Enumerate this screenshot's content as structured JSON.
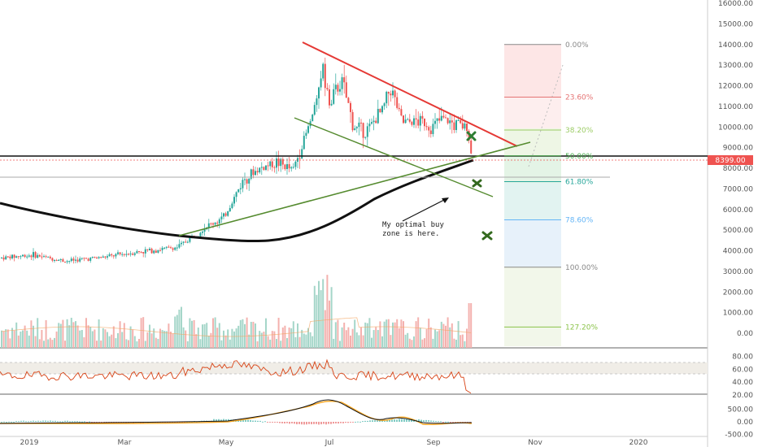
{
  "chart_data": {
    "type": "candlestick",
    "price_axis": {
      "ticks": [
        "16000.00",
        "15000.00",
        "14000.00",
        "13000.00",
        "12000.00",
        "11000.00",
        "10000.00",
        "9000.00",
        "8000.00",
        "7000.00",
        "6000.00",
        "5000.00",
        "4000.00",
        "3000.00",
        "2000.00",
        "1000.00",
        "0.00"
      ],
      "current_price_label": "8399.00",
      "current_price_color": "#ef5350"
    },
    "rsi_axis": {
      "ticks": [
        "80.00",
        "60.00",
        "40.00",
        "20.00"
      ]
    },
    "macd_axis": {
      "ticks": [
        "500.00",
        "0.00",
        "-500.00"
      ]
    },
    "x_axis": {
      "labels": [
        "2019",
        "Mar",
        "May",
        "Jul",
        "Sep",
        "Nov",
        "2020"
      ]
    },
    "fib_levels": [
      {
        "label": "0.00%",
        "price": 14000,
        "color": "#888888"
      },
      {
        "label": "23.60%",
        "price": 11450,
        "color": "#e57373"
      },
      {
        "label": "38.20%",
        "price": 9850,
        "color": "#9ccc65"
      },
      {
        "label": "50.00%",
        "price": 8600,
        "color": "#4caf50"
      },
      {
        "label": "61.80%",
        "price": 7350,
        "color": "#26a69a"
      },
      {
        "label": "78.60%",
        "price": 5500,
        "color": "#64b5f6"
      },
      {
        "label": "100.00%",
        "price": 3200,
        "color": "#888888"
      },
      {
        "label": "127.20%",
        "price": 300,
        "color": "#8bc34a"
      }
    ],
    "annotation": {
      "line1": "My optimal buy",
      "line2": "zone is here."
    },
    "colors": {
      "up": "#26a69a",
      "down": "#ef5350",
      "trend_red": "#e53935",
      "trend_green": "#558b2f",
      "ma": "#111111",
      "rsi": "#d84315",
      "macd": "#111111",
      "signal": "#f9a825"
    }
  }
}
